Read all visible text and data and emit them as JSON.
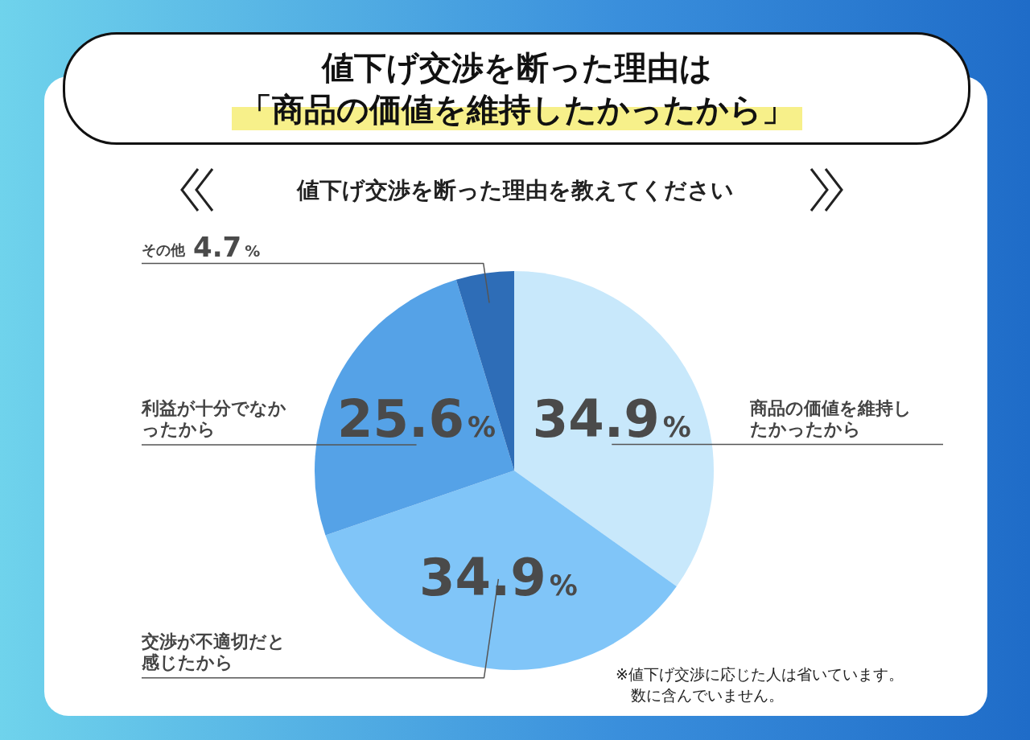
{
  "chart_data": {
    "type": "pie",
    "title": "値下げ交渉を断った理由は「商品の価値を維持したかったから」",
    "subtitle": "値下げ交渉を断った理由を教えてください",
    "categories": [
      "商品の価値を維持したかったから",
      "交渉が不適切だと感じたから",
      "利益が十分でなかったから",
      "その他"
    ],
    "values": [
      34.9,
      34.9,
      25.6,
      4.7
    ],
    "colors": [
      "#c8e8fb",
      "#80c5f8",
      "#55a2e7",
      "#2e6db7"
    ],
    "value_labels": [
      "34.9%",
      "34.9%",
      "25.6%",
      "4.7%"
    ],
    "legend": false,
    "annotations": [
      "※値下げ交渉に応じた人は省いています。数に含んでいません。"
    ]
  }
}
